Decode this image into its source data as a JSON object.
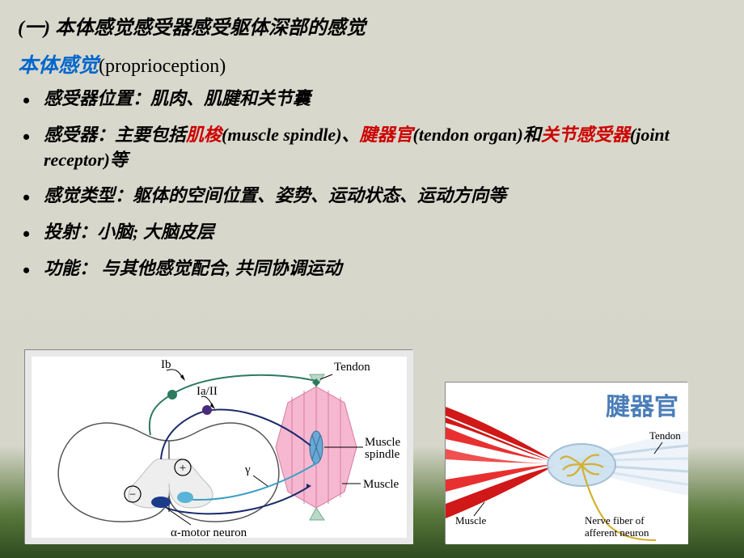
{
  "title": "(一) 本体感觉感受器感受躯体深部的感觉",
  "subtitle": {
    "term": "本体感觉",
    "paren": "(proprioception)"
  },
  "bullets": [
    {
      "seg": [
        {
          "t": "感受器位置：肌肉、肌腱和关节囊"
        }
      ]
    },
    {
      "seg": [
        {
          "t": "感受器：主要包括"
        },
        {
          "t": "肌梭",
          "c": "red"
        },
        {
          "t": "(muscle spindle)、"
        },
        {
          "t": "腱器官",
          "c": "red"
        },
        {
          "t": "(tendon organ)和"
        },
        {
          "t": "关节感受器",
          "c": "red"
        },
        {
          "t": "(joint receptor)等"
        }
      ]
    },
    {
      "seg": [
        {
          "t": "感觉类型：躯体的空间位置、姿势、运动状态、运动方向等"
        }
      ]
    },
    {
      "seg": [
        {
          "t": "投射：小脑; 大脑皮层"
        }
      ]
    },
    {
      "seg": [
        {
          "t": "功能： 与其他感觉配合, 共同协调运动"
        }
      ]
    }
  ],
  "dia_left": {
    "labels": {
      "Ib": "Ib",
      "IaII": "Ia/II",
      "gamma": "γ",
      "alpha": "α-motor neuron",
      "tendon": "Tendon",
      "spindle": "Muscle spindle",
      "muscle": "Muscle",
      "plus": "+",
      "minus": "−"
    },
    "colors": {
      "spinal_outline": "#555",
      "Ib": "#2d7a5f",
      "IaII": "#1a2a6b",
      "gamma": "#3da0c4",
      "alpha": "#1a2a6b",
      "muscle_fill": "#f5b8d0",
      "muscle_stripe": "#d97aa0",
      "tendon_fill": "#b8d8c8",
      "spindle_fill": "#6aa8d4",
      "neuron1": "#1a3a8a",
      "neuron2": "#5ab4d8",
      "bg": "#e8e8e8"
    }
  },
  "dia_right": {
    "labels": {
      "title": "腱器官",
      "tendon": "Tendon",
      "muscle": "Muscle",
      "nerve": "Nerve fiber of afferent neuron"
    },
    "colors": {
      "muscle": "#d01818",
      "muscle_lt": "#f05050",
      "tendon": "#dae8f2",
      "tendon_border": "#9ab8d0",
      "nerve": "#d4b030",
      "capsule": "#a8c8e0"
    }
  }
}
